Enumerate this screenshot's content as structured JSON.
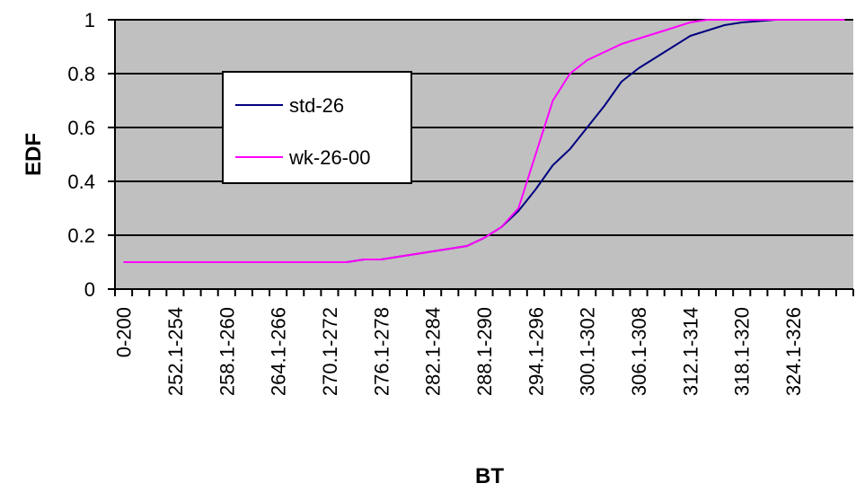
{
  "chart_data": {
    "type": "line",
    "xlabel": "BT",
    "ylabel": "EDF",
    "ylim": [
      0,
      1
    ],
    "y_ticks": [
      "0",
      "0.2",
      "0.4",
      "0.6",
      "0.8",
      "1"
    ],
    "grid": "horizontal",
    "legend_position": "upper-left",
    "x_labels_shown": [
      "0-200",
      "252.1-254",
      "258.1-260",
      "264.1-266",
      "270.1-272",
      "276.1-278",
      "282.1-284",
      "288.1-290",
      "294.1-296",
      "300.1-302",
      "306.1-308",
      "312.1-314",
      "318.1-320",
      "324.1-326"
    ],
    "x": [
      "0-200",
      "248.1-250",
      "250.1-252",
      "252.1-254",
      "254.1-256",
      "256.1-258",
      "258.1-260",
      "260.1-262",
      "262.1-264",
      "264.1-266",
      "266.1-268",
      "268.1-270",
      "270.1-272",
      "272.1-274",
      "274.1-276",
      "276.1-278",
      "278.1-280",
      "280.1-282",
      "282.1-284",
      "284.1-286",
      "286.1-288",
      "288.1-290",
      "290.1-292",
      "292.1-294",
      "294.1-296",
      "296.1-298",
      "298.1-300",
      "300.1-302",
      "302.1-304",
      "304.1-306",
      "306.1-308",
      "308.1-310",
      "310.1-312",
      "312.1-314",
      "314.1-316",
      "316.1-318",
      "318.1-320",
      "320.1-322",
      "322.1-324",
      "324.1-326",
      "326.1-328",
      "328.1-330",
      "330.1-332"
    ],
    "series": [
      {
        "name": "std-26",
        "color": "#000080",
        "values": [
          0.1,
          0.1,
          0.1,
          0.1,
          0.1,
          0.1,
          0.1,
          0.1,
          0.1,
          0.1,
          0.1,
          0.1,
          0.1,
          0.1,
          0.11,
          0.11,
          0.12,
          0.13,
          0.14,
          0.15,
          0.16,
          0.19,
          0.23,
          0.29,
          0.37,
          0.46,
          0.52,
          0.6,
          0.68,
          0.77,
          0.82,
          0.86,
          0.9,
          0.94,
          0.96,
          0.98,
          0.99,
          0.995,
          1.0,
          null,
          null,
          null,
          null
        ]
      },
      {
        "name": "wk-26-00",
        "color": "#ff00ff",
        "values": [
          0.1,
          0.1,
          0.1,
          0.1,
          0.1,
          0.1,
          0.1,
          0.1,
          0.1,
          0.1,
          0.1,
          0.1,
          0.1,
          0.1,
          0.11,
          0.11,
          0.12,
          0.13,
          0.14,
          0.15,
          0.16,
          0.19,
          0.23,
          0.3,
          0.5,
          0.7,
          0.8,
          0.85,
          0.88,
          0.91,
          0.93,
          0.95,
          0.97,
          0.99,
          1.0,
          1.0,
          1.0,
          1.0,
          1.0,
          1.0,
          1.0,
          1.0,
          1.0
        ]
      }
    ]
  },
  "colors": {
    "plot_background": "#c0c0c0",
    "gridline": "#000000"
  }
}
